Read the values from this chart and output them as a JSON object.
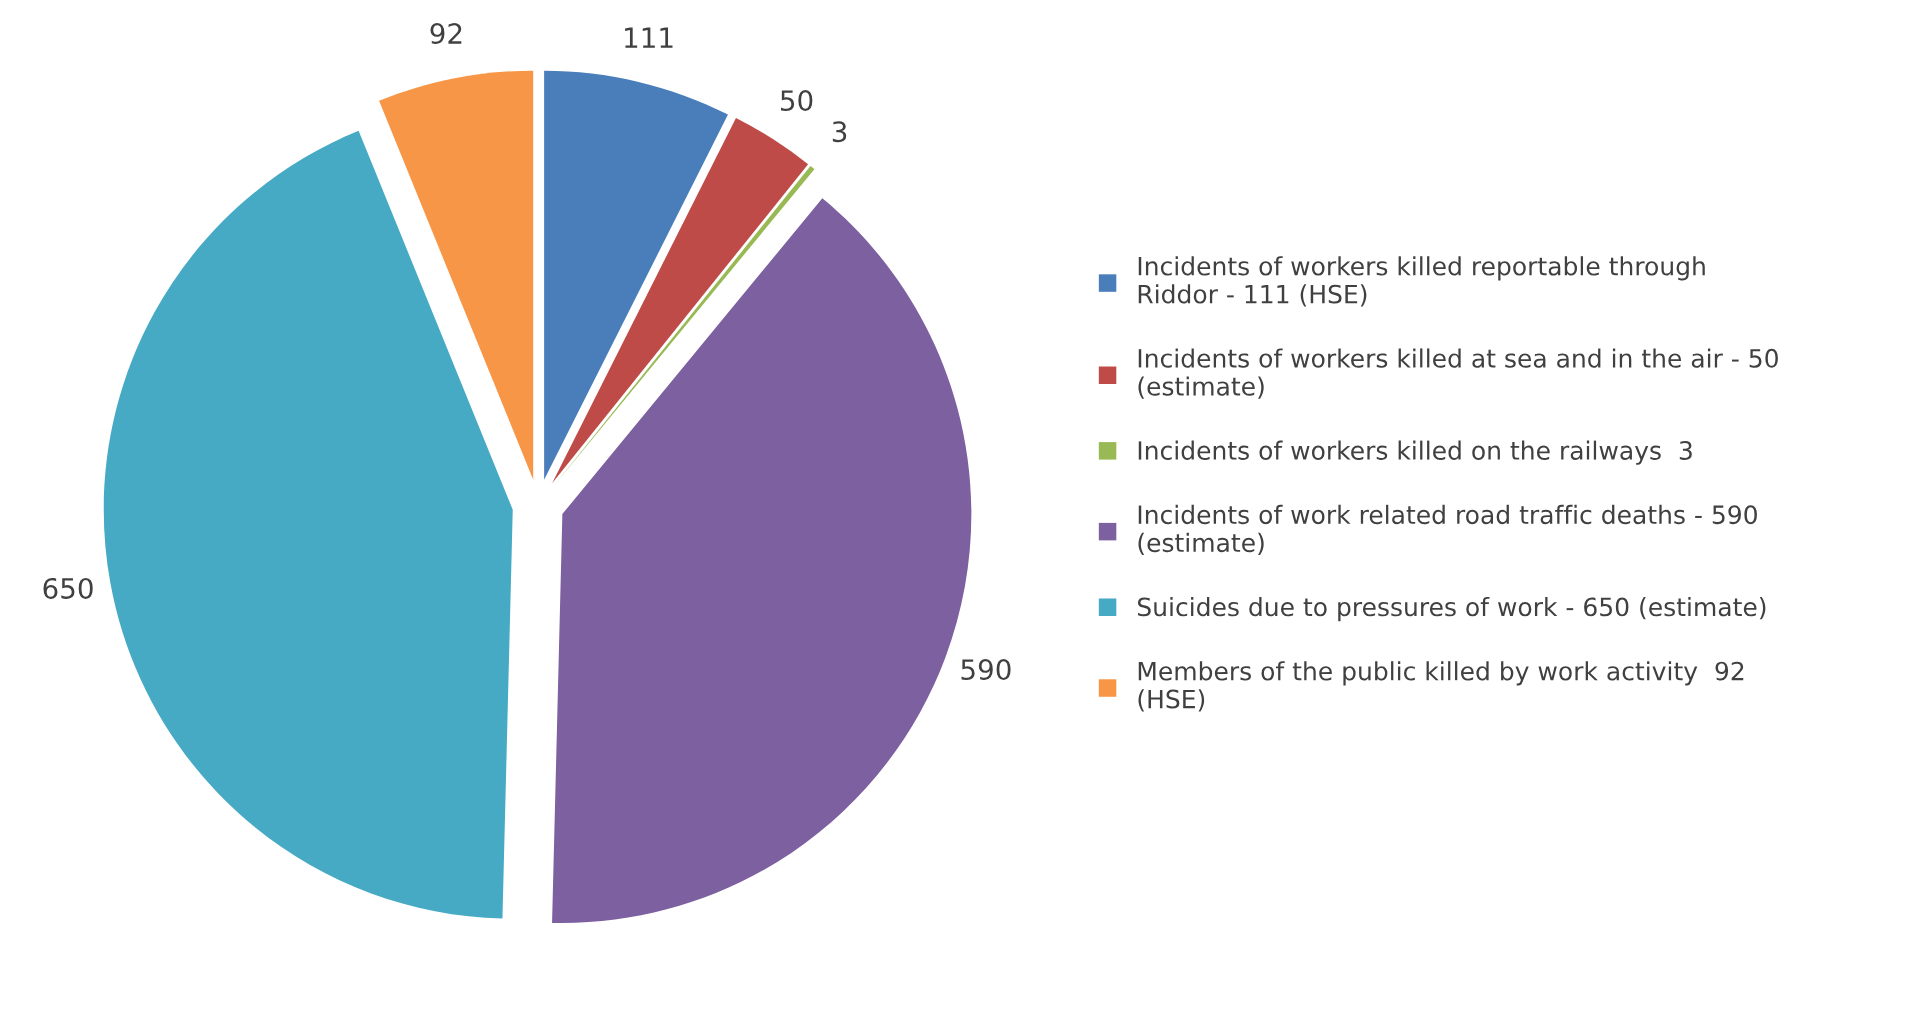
{
  "chart_data": {
    "type": "pie",
    "categories": [
      "Incidents of workers killed reportable through\nRiddor - 111 (HSE)",
      "Incidents of workers killed at sea and in the air - 50\n(estimate)",
      "Incidents of workers killed on the railways  3",
      "Incidents of work related road traffic deaths - 590\n(estimate)",
      "Suicides due to pressures of work - 650 (estimate)",
      "Members of the public killed by work activity  92\n(HSE)"
    ],
    "values": [
      111,
      50,
      3,
      590,
      650,
      92
    ],
    "colors": [
      "#4a7ebb",
      "#be4b48",
      "#98b954",
      "#7d60a0",
      "#46aac5",
      "#f79646"
    ],
    "data_labels": true,
    "legend": "right"
  }
}
